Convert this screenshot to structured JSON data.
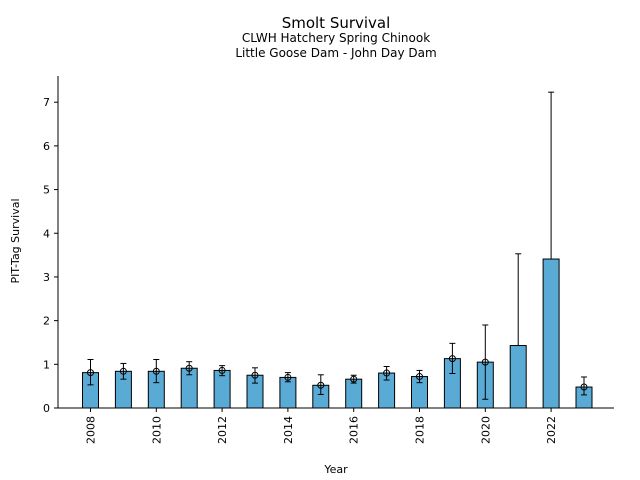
{
  "chart_data": {
    "type": "bar",
    "title": "Smolt Survival",
    "subtitle_1": "CLWH Hatchery Spring Chinook",
    "subtitle_2": "Little Goose Dam - John Day Dam",
    "xlabel": "Year",
    "ylabel": "PIT-Tag Survival",
    "ylim": [
      0,
      7.6
    ],
    "yticks": [
      0,
      1,
      2,
      3,
      4,
      5,
      6,
      7
    ],
    "xtick_labels": [
      "2008",
      "2010",
      "2012",
      "2014",
      "2016",
      "2018",
      "2020",
      "2022"
    ],
    "grid": false,
    "bar_color": "#5aaad6",
    "categories": [
      2008,
      2009,
      2010,
      2011,
      2012,
      2013,
      2014,
      2015,
      2016,
      2017,
      2018,
      2019,
      2020,
      2021,
      2022,
      2023
    ],
    "values": [
      0.81,
      0.84,
      0.84,
      0.91,
      0.86,
      0.75,
      0.7,
      0.52,
      0.66,
      0.8,
      0.72,
      1.13,
      1.05,
      1.43,
      3.41,
      0.48
    ],
    "error_low": [
      0.53,
      0.66,
      0.58,
      0.76,
      0.74,
      0.57,
      0.6,
      0.31,
      0.57,
      0.64,
      0.58,
      0.79,
      0.2,
      null,
      null,
      0.3
    ],
    "error_high": [
      1.11,
      1.02,
      1.11,
      1.06,
      0.97,
      0.92,
      0.81,
      0.76,
      0.75,
      0.95,
      0.86,
      1.48,
      1.9,
      3.53,
      7.23,
      0.71
    ],
    "markers": [
      true,
      true,
      true,
      true,
      true,
      true,
      true,
      true,
      true,
      true,
      true,
      true,
      true,
      false,
      false,
      true
    ]
  }
}
